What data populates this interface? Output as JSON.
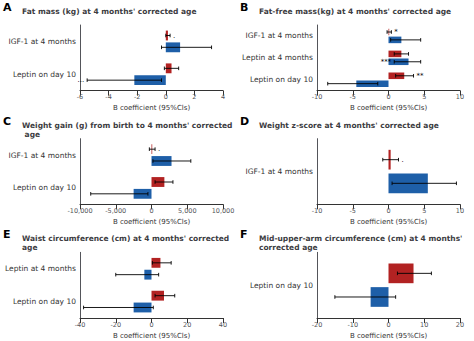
{
  "chart_data": [
    {
      "type": "bar",
      "orientation": "horizontal",
      "panel": "A",
      "title": "Fat mass (kg) at 4 months' corrected age",
      "xlabel": "B coefficient (95%Cls)",
      "xlim": [
        -6,
        4
      ],
      "xticks": [
        -6,
        -4,
        -2,
        0,
        2,
        4
      ],
      "grid": false,
      "categories": [
        "IGF-1 at 4 months",
        "Leptin on day 10"
      ],
      "series": [
        {
          "color": "#b22222",
          "values": [
            0.15,
            0.4
          ],
          "lower": [
            0.0,
            -0.1
          ],
          "upper": [
            0.3,
            0.9
          ],
          "annotations": [
            ".",
            null
          ]
        },
        {
          "color": "#1e5fa8",
          "values": [
            1.0,
            -2.2
          ],
          "lower": [
            -0.3,
            -5.5
          ],
          "upper": [
            3.2,
            -0.3
          ],
          "annotations": [
            null,
            "..."
          ]
        }
      ]
    },
    {
      "type": "bar",
      "orientation": "horizontal",
      "panel": "B",
      "title": "Fat-free mass(kg) at 4 months' corrected age",
      "xlabel": "B coefficient (95%Cls)",
      "xlim": [
        -10,
        10
      ],
      "xticks": [
        -10,
        -5,
        0,
        5,
        10
      ],
      "grid": false,
      "categories": [
        "IGF-1 at 4 months",
        "Leptin at 4 months",
        "Leptin on day 10"
      ],
      "series": [
        {
          "color": "#b22222",
          "values": [
            0.1,
            1.8,
            2.2
          ],
          "lower": [
            -0.2,
            0.8,
            1.0
          ],
          "upper": [
            0.4,
            2.8,
            3.5
          ],
          "annotations": [
            "*",
            null,
            "**"
          ]
        },
        {
          "color": "#1e5fa8",
          "values": [
            1.8,
            2.8,
            -4.5
          ],
          "lower": [
            0.3,
            0.8,
            -8.5
          ],
          "upper": [
            4.5,
            4.5,
            -1.5
          ],
          "annotations": [
            null,
            "***",
            null
          ]
        }
      ]
    },
    {
      "type": "bar",
      "orientation": "horizontal",
      "panel": "C",
      "title": "Weight gain (g) from birth to 4 months' corrected age",
      "xlabel": "B coefficient (95%Cls)",
      "xlim": [
        -10000,
        10000
      ],
      "xticks": [
        -10000,
        -5000,
        0,
        5000,
        10000
      ],
      "grid": false,
      "categories": [
        "IGF-1 at 4 months",
        "Leptin on day 10"
      ],
      "series": [
        {
          "color": "#b22222",
          "values": [
            100,
            1800
          ],
          "lower": [
            -300,
            500
          ],
          "upper": [
            500,
            3000
          ],
          "annotations": [
            ".",
            null
          ]
        },
        {
          "color": "#1e5fa8",
          "values": [
            2800,
            -2500
          ],
          "lower": [
            200,
            -8500
          ],
          "upper": [
            5500,
            -500
          ],
          "annotations": [
            null,
            null
          ]
        }
      ]
    },
    {
      "type": "bar",
      "orientation": "horizontal",
      "panel": "D",
      "title": "Weight z-score at 4 months' corrected age",
      "xlabel": "B coefficient (95%Cls)",
      "xlim": [
        -10,
        10
      ],
      "xticks": [
        -10,
        -5,
        0,
        5,
        10
      ],
      "grid": false,
      "categories": [
        "IGF-1 at 4 months"
      ],
      "series": [
        {
          "color": "#b22222",
          "values": [
            0.3
          ],
          "lower": [
            -0.8
          ],
          "upper": [
            1.4
          ],
          "annotations": [
            "."
          ]
        },
        {
          "color": "#1e5fa8",
          "values": [
            5.5
          ],
          "lower": [
            0.5
          ],
          "upper": [
            9.5
          ],
          "annotations": [
            null
          ]
        }
      ]
    },
    {
      "type": "bar",
      "orientation": "horizontal",
      "panel": "E",
      "title": "Waist circumference (cm) at 4 months' corrected age",
      "xlabel": "B coefficient (95%Cls)",
      "xlim": [
        -40,
        40
      ],
      "xticks": [
        -40,
        -20,
        0,
        20,
        40
      ],
      "grid": false,
      "categories": [
        "Leptin at 4 months",
        "Leptin on day 10"
      ],
      "series": [
        {
          "color": "#b22222",
          "values": [
            5.0,
            7.0
          ],
          "lower": [
            0.5,
            2.0
          ],
          "upper": [
            11.0,
            13.0
          ],
          "annotations": [
            null,
            null
          ]
        },
        {
          "color": "#1e5fa8",
          "values": [
            -4.0,
            -10.0
          ],
          "lower": [
            -20.0,
            -38.0
          ],
          "upper": [
            4.0,
            1.0
          ],
          "annotations": [
            null,
            null
          ]
        }
      ]
    },
    {
      "type": "bar",
      "orientation": "horizontal",
      "panel": "F",
      "title": "Mid-upper-arm circumference (cm) at 4 months' corrected age",
      "xlabel": "B coefficient (95%Cls)",
      "xlim": [
        -20,
        20
      ],
      "xticks": [
        -20,
        -10,
        0,
        10,
        20
      ],
      "grid": false,
      "categories": [
        "Leptin on day 10"
      ],
      "series": [
        {
          "color": "#b22222",
          "values": [
            7.0
          ],
          "lower": [
            2.5
          ],
          "upper": [
            12.0
          ],
          "annotations": [
            null
          ]
        },
        {
          "color": "#1e5fa8",
          "values": [
            -5.0
          ],
          "lower": [
            -15.0
          ],
          "upper": [
            2.0
          ],
          "annotations": [
            null
          ]
        }
      ]
    }
  ]
}
